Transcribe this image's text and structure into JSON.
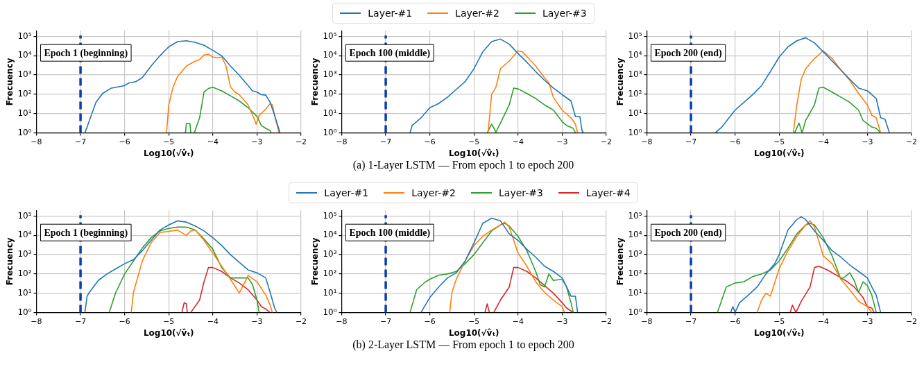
{
  "chart_data": [
    {
      "type": "line",
      "xlabel": "Log10(√v̂ₜ)",
      "ylabel": "Frecuency",
      "legend": "top",
      "grid": true,
      "log": "y",
      "marker": "none",
      "line_style": "solid",
      "xlim": [
        -8,
        -2
      ],
      "ylim": [
        1,
        200000
      ],
      "xticks": [
        {
          "value": -8,
          "label": "−8"
        },
        {
          "value": -7,
          "label": "−7"
        },
        {
          "value": -6,
          "label": "−6"
        },
        {
          "value": -5,
          "label": "−5"
        },
        {
          "value": -4,
          "label": "−4"
        },
        {
          "value": -3,
          "label": "−3"
        },
        {
          "value": -2,
          "label": "−2"
        }
      ],
      "yticks": [
        {
          "value": 1,
          "label": "10⁰"
        },
        {
          "value": 10,
          "label": "10¹"
        },
        {
          "value": 100,
          "label": "10²"
        },
        {
          "value": 1000,
          "label": "10³"
        },
        {
          "value": 10000,
          "label": "10⁴"
        },
        {
          "value": 100000,
          "label": "10⁵"
        }
      ],
      "ref_lines": [
        {
          "axis": "x",
          "value": -7,
          "color": "#0a3fa8",
          "line_style": "dashed"
        }
      ],
      "annotations": [
        "Epoch 1 (beginning)",
        "(a)  1-Layer LSTM — From epoch 1 to epoch 200"
      ],
      "series": [
        {
          "name": "Layer-#1",
          "color": "#1f77b4",
          "x": [
            -6.9,
            -6.85,
            -6.65,
            -6.5,
            -6.3,
            -6,
            -5.9,
            -5.75,
            -5.6,
            -5.4,
            -5.2,
            -5,
            -4.8,
            -4.6,
            -4.4,
            -4.2,
            -4,
            -3.8,
            -3.6,
            -3.4,
            -3.2,
            -3.1,
            -3,
            -2.9,
            -2.8,
            -2.7,
            -2.6,
            -2.5,
            -2.48
          ],
          "values": [
            1,
            2,
            38,
            110,
            210,
            280,
            390,
            450,
            720,
            2900,
            10000,
            29000,
            54000,
            60000,
            50000,
            35000,
            19000,
            10000,
            2900,
            970,
            280,
            150,
            130,
            95,
            90,
            38,
            8,
            1.5,
            1
          ]
        },
        {
          "name": "Layer-#2",
          "color": "#ff7f0e",
          "x": [
            -5.05,
            -5,
            -4.9,
            -4.8,
            -4.6,
            -4.4,
            -4.3,
            -4.2,
            -4.1,
            -4,
            -3.9,
            -3.8,
            -3.7,
            -3.6,
            -3.5,
            -3.4,
            -3.2,
            -3.05,
            -3.02,
            -2.95,
            -2.8,
            -2.7,
            -2.65,
            -2.6,
            -2.5
          ],
          "values": [
            1,
            28,
            240,
            830,
            2900,
            5300,
            6300,
            11000,
            12000,
            8500,
            7700,
            8500,
            2900,
            240,
            130,
            95,
            28,
            4.4,
            2.8,
            8,
            17,
            33,
            28,
            8,
            1
          ]
        },
        {
          "name": "Layer-#3",
          "color": "#2ca02c",
          "x": [
            -4.62,
            -4.6,
            -4.52,
            -4.5,
            -4.46,
            -4.42,
            -4.3,
            -4.2,
            -4.1,
            -4,
            -3.8,
            -3.6,
            -3.4,
            -3.2,
            -3,
            -2.9,
            -2.8,
            -2.7,
            -2.68
          ],
          "values": [
            1,
            3,
            3,
            1,
            null,
            1,
            6,
            130,
            200,
            230,
            150,
            83,
            45,
            20,
            7,
            2.4,
            1.7,
            1.3,
            1
          ]
        }
      ]
    },
    {
      "type": "line",
      "xlabel": "Log10(√v̂ₜ)",
      "ylabel": "Frecuency",
      "grid": true,
      "log": "y",
      "marker": "none",
      "line_style": "solid",
      "xlim": [
        -8,
        -2
      ],
      "ylim": [
        1,
        200000
      ],
      "xticks": [
        {
          "value": -8,
          "label": "−8"
        },
        {
          "value": -7,
          "label": "−7"
        },
        {
          "value": -6,
          "label": "−6"
        },
        {
          "value": -5,
          "label": "−5"
        },
        {
          "value": -4,
          "label": "−4"
        },
        {
          "value": -3,
          "label": "−3"
        },
        {
          "value": -2,
          "label": "−2"
        }
      ],
      "yticks": [
        {
          "value": 1,
          "label": "10⁰"
        },
        {
          "value": 10,
          "label": "10¹"
        },
        {
          "value": 100,
          "label": "10²"
        },
        {
          "value": 1000,
          "label": "10³"
        },
        {
          "value": 10000,
          "label": "10⁴"
        },
        {
          "value": 100000,
          "label": "10⁵"
        }
      ],
      "ref_lines": [
        {
          "axis": "x",
          "value": -7,
          "color": "#0a3fa8",
          "line_style": "dashed"
        }
      ],
      "annotations": [
        "Epoch 100 (middle)"
      ],
      "series": [
        {
          "color": "#1f77b4",
          "x": [
            -6.45,
            -6.4,
            -6.2,
            -6,
            -5.8,
            -5.6,
            -5.4,
            -5.2,
            -5,
            -4.8,
            -4.6,
            -4.4,
            -4.2,
            -4,
            -3.8,
            -3.6,
            -3.4,
            -3.2,
            -3,
            -2.8,
            -2.7,
            -2.6,
            -2.55,
            -2.52
          ],
          "values": [
            1,
            2.4,
            6,
            20,
            33,
            70,
            180,
            450,
            2100,
            16000,
            54000,
            73000,
            40000,
            13000,
            4600,
            1500,
            530,
            210,
            95,
            45,
            7,
            7,
            1.3,
            1
          ]
        },
        {
          "color": "#ff7f0e",
          "x": [
            -4.68,
            -4.6,
            -4.5,
            -4.4,
            -4.2,
            -4,
            -3.9,
            -3.6,
            -3.4,
            -3.3,
            -3.2,
            -3,
            -2.8,
            -2.7,
            -2.65
          ],
          "values": [
            1,
            96,
            240,
            2100,
            5300,
            18000,
            16000,
            2900,
            720,
            390,
            70,
            15,
            6,
            2.8,
            1
          ]
        },
        {
          "color": "#2ca02c",
          "x": [
            -4.7,
            -4.6,
            -4.5,
            -4.4,
            -4.2,
            -4.1,
            -4,
            -3.8,
            -3.6,
            -3.4,
            -3.2,
            -3,
            -2.9,
            -2.75,
            -2.7
          ],
          "values": [
            1,
            2.8,
            1.1,
            3.2,
            28,
            210,
            190,
            110,
            60,
            28,
            15,
            3.8,
            2.4,
            1.7,
            1
          ]
        }
      ]
    },
    {
      "type": "line",
      "xlabel": "Log10(√v̂ₜ)",
      "ylabel": "Frecuency",
      "grid": true,
      "log": "y",
      "marker": "none",
      "line_style": "solid",
      "xlim": [
        -8,
        -2
      ],
      "ylim": [
        1,
        200000
      ],
      "xticks": [
        {
          "value": -8,
          "label": "−8"
        },
        {
          "value": -7,
          "label": "−7"
        },
        {
          "value": -6,
          "label": "−6"
        },
        {
          "value": -5,
          "label": "−5"
        },
        {
          "value": -4,
          "label": "−4"
        },
        {
          "value": -3,
          "label": "−3"
        },
        {
          "value": -2,
          "label": "−2"
        }
      ],
      "yticks": [
        {
          "value": 1,
          "label": "10⁰"
        },
        {
          "value": 10,
          "label": "10¹"
        },
        {
          "value": 100,
          "label": "10²"
        },
        {
          "value": 1000,
          "label": "10³"
        },
        {
          "value": 10000,
          "label": "10⁴"
        },
        {
          "value": 100000,
          "label": "10⁵"
        }
      ],
      "ref_lines": [
        {
          "axis": "x",
          "value": -7,
          "color": "#0a3fa8",
          "line_style": "dashed"
        }
      ],
      "annotations": [
        "Epoch 200 (end)"
      ],
      "series": [
        {
          "color": "#1f77b4",
          "x": [
            -6.45,
            -6.3,
            -6,
            -5.8,
            -5.6,
            -5.4,
            -5.2,
            -5,
            -4.8,
            -4.6,
            -4.4,
            -4.2,
            -4,
            -3.8,
            -3.6,
            -3.4,
            -3.2,
            -3,
            -2.8,
            -2.7,
            -2.6,
            -2.5
          ],
          "values": [
            1,
            2,
            15,
            38,
            96,
            280,
            1500,
            8500,
            29000,
            60000,
            86000,
            46000,
            16000,
            5300,
            1800,
            600,
            210,
            150,
            60,
            6,
            5,
            1
          ]
        },
        {
          "color": "#ff7f0e",
          "x": [
            -4.68,
            -4.6,
            -4.5,
            -4.4,
            -4.2,
            -4,
            -3.8,
            -3.6,
            -3.4,
            -3.2,
            -3,
            -2.9,
            -2.8,
            -2.7
          ],
          "values": [
            1,
            28,
            600,
            2100,
            7200,
            18000,
            7200,
            1800,
            530,
            110,
            28,
            8,
            6,
            1
          ]
        },
        {
          "color": "#2ca02c",
          "x": [
            -4.65,
            -4.55,
            -4.48,
            -4.4,
            -4.2,
            -4.1,
            -4,
            -3.8,
            -3.6,
            -3.4,
            -3.2,
            -3.1,
            -2.9,
            -2.8,
            -2.7
          ],
          "values": [
            1,
            3.2,
            1,
            4.4,
            28,
            210,
            230,
            130,
            70,
            38,
            15,
            4.4,
            2,
            1.7,
            1
          ]
        }
      ]
    },
    {
      "type": "line",
      "xlabel": "Log10(√v̂ₜ)",
      "ylabel": "Frecuency",
      "legend": "top",
      "grid": true,
      "log": "y",
      "marker": "none",
      "line_style": "solid",
      "xlim": [
        -8,
        -2
      ],
      "ylim": [
        1,
        200000
      ],
      "xticks": [
        {
          "value": -8,
          "label": "−8"
        },
        {
          "value": -7,
          "label": "−7"
        },
        {
          "value": -6,
          "label": "−6"
        },
        {
          "value": -5,
          "label": "−5"
        },
        {
          "value": -4,
          "label": "−4"
        },
        {
          "value": -3,
          "label": "−3"
        },
        {
          "value": -2,
          "label": "−2"
        }
      ],
      "yticks": [
        {
          "value": 1,
          "label": "10⁰"
        },
        {
          "value": 10,
          "label": "10¹"
        },
        {
          "value": 100,
          "label": "10²"
        },
        {
          "value": 1000,
          "label": "10³"
        },
        {
          "value": 10000,
          "label": "10⁴"
        },
        {
          "value": 100000,
          "label": "10⁵"
        }
      ],
      "ref_lines": [
        {
          "axis": "x",
          "value": -7,
          "color": "#0a3fa8",
          "line_style": "dashed"
        }
      ],
      "annotations": [
        "Epoch 1 (beginning)",
        "(b)  2-Layer LSTM — From epoch 1 to epoch 200"
      ],
      "series": [
        {
          "name": "Layer-#1",
          "color": "#1f77b4",
          "x": [
            -6.9,
            -6.85,
            -6.8,
            -6.6,
            -6.4,
            -6.2,
            -6,
            -5.8,
            -5.6,
            -5.4,
            -5.2,
            -5,
            -4.8,
            -4.6,
            -4.4,
            -4.2,
            -4,
            -3.8,
            -3.6,
            -3.4,
            -3.2,
            -3,
            -2.8,
            -2.7,
            -2.6,
            -2.55
          ],
          "values": [
            1,
            7,
            11,
            45,
            100,
            185,
            340,
            550,
            1600,
            5500,
            19000,
            35000,
            57000,
            49000,
            31000,
            17000,
            7600,
            3000,
            1000,
            400,
            160,
            115,
            62,
            11,
            1.7,
            1
          ]
        },
        {
          "name": "Layer-#2",
          "color": "#ff7f0e",
          "x": [
            -5.85,
            -5.8,
            -5.6,
            -5.4,
            -5.2,
            -4.8,
            -4.6,
            -4.5,
            -4.4,
            -4.2,
            -4,
            -3.8,
            -3.6,
            -3.4,
            -3.3,
            -3.2,
            -3,
            -2.8,
            -2.7,
            -2.65
          ],
          "values": [
            1,
            11,
            470,
            4100,
            14000,
            19000,
            10000,
            17000,
            19000,
            5500,
            1200,
            250,
            53,
            10,
            28,
            85,
            39,
            8,
            2.4,
            1
          ]
        },
        {
          "name": "Layer-#3",
          "color": "#2ca02c",
          "x": [
            -6.35,
            -6.2,
            -6,
            -5.8,
            -5.6,
            -5.4,
            -5.2,
            -5,
            -4.8,
            -4.6,
            -4.4,
            -4.2,
            -4,
            -3.8,
            -3.6,
            -3.4,
            -3.2,
            -3.1,
            -3,
            -2.95
          ],
          "values": [
            1,
            11,
            100,
            470,
            2200,
            7600,
            17000,
            23000,
            27000,
            27000,
            19000,
            6500,
            1900,
            215,
            62,
            62,
            62,
            28,
            4.4,
            1
          ]
        },
        {
          "name": "Layer-#4",
          "color": "#d62728",
          "x": [
            -4.7,
            -4.65,
            -4.6,
            -4.58,
            -4.54,
            -4.5,
            -4.3,
            -4.2,
            -4.1,
            -4,
            -3.8,
            -3.6,
            -3.4,
            -3.2,
            -3,
            -2.9,
            -2.8,
            -2.7
          ],
          "values": [
            1,
            3.2,
            2.8,
            1,
            null,
            1,
            4.4,
            39,
            215,
            215,
            135,
            62,
            34,
            15,
            4.4,
            2,
            1.5,
            1
          ]
        }
      ]
    },
    {
      "type": "line",
      "xlabel": "Log10(√v̂ₜ)",
      "ylabel": "Frecuency",
      "grid": true,
      "log": "y",
      "marker": "none",
      "line_style": "solid",
      "xlim": [
        -8,
        -2
      ],
      "ylim": [
        1,
        200000
      ],
      "xticks": [
        {
          "value": -8,
          "label": "−8"
        },
        {
          "value": -7,
          "label": "−7"
        },
        {
          "value": -6,
          "label": "−6"
        },
        {
          "value": -5,
          "label": "−5"
        },
        {
          "value": -4,
          "label": "−4"
        },
        {
          "value": -3,
          "label": "−3"
        },
        {
          "value": -2,
          "label": "−2"
        }
      ],
      "yticks": [
        {
          "value": 1,
          "label": "10⁰"
        },
        {
          "value": 10,
          "label": "10¹"
        },
        {
          "value": 100,
          "label": "10²"
        },
        {
          "value": 1000,
          "label": "10³"
        },
        {
          "value": 10000,
          "label": "10⁴"
        },
        {
          "value": 100000,
          "label": "10⁵"
        }
      ],
      "ref_lines": [
        {
          "axis": "x",
          "value": -7,
          "color": "#0a3fa8",
          "line_style": "dashed"
        }
      ],
      "annotations": [
        "Epoch 100 (middle)"
      ],
      "series": [
        {
          "color": "#1f77b4",
          "x": [
            -6.2,
            -6,
            -5.8,
            -5.6,
            -5.4,
            -5.2,
            -5,
            -4.8,
            -4.6,
            -4.4,
            -4.2,
            -4,
            -3.8,
            -3.6,
            -3.4,
            -3.2,
            -3,
            -2.9,
            -2.8,
            -2.7,
            -2.65
          ],
          "values": [
            1,
            6,
            21,
            62,
            115,
            470,
            4100,
            42000,
            78000,
            57000,
            12000,
            5500,
            1900,
            740,
            250,
            135,
            62,
            21,
            7,
            7,
            1
          ]
        },
        {
          "color": "#ff7f0e",
          "x": [
            -5.55,
            -5.5,
            -5.4,
            -5.2,
            -5,
            -4.8,
            -4.6,
            -4.4,
            -4.3,
            -4.2,
            -4,
            -3.8,
            -3.6,
            -3.4,
            -3.2,
            -3,
            -2.95
          ],
          "values": [
            1,
            11,
            53,
            470,
            3000,
            8900,
            19000,
            35000,
            49000,
            27000,
            1200,
            250,
            39,
            11,
            4.4,
            2,
            1
          ]
        },
        {
          "color": "#2ca02c",
          "x": [
            -6.45,
            -6.3,
            -6.1,
            -6,
            -5.8,
            -5.6,
            -5.4,
            -5.2,
            -5,
            -4.8,
            -4.6,
            -4.4,
            -4.3,
            -4.2,
            -4,
            -3.8,
            -3.6,
            -3.5,
            -3.4,
            -3.3,
            -3.2,
            -3,
            -2.9,
            -2.8,
            -2.75
          ],
          "values": [
            1,
            15,
            39,
            53,
            85,
            100,
            135,
            340,
            1000,
            4100,
            17000,
            35000,
            42000,
            31000,
            8900,
            1600,
            135,
            28,
            21,
            100,
            46,
            53,
            21,
            3.2,
            1
          ]
        },
        {
          "color": "#d62728",
          "x": [
            -4.75,
            -4.7,
            -4.65,
            -4.6,
            -4.55,
            -4.4,
            -4.2,
            -4.1,
            -4,
            -3.8,
            -3.6,
            -3.4,
            -3.2,
            -3,
            -2.9,
            -2.75
          ],
          "values": [
            1,
            2.8,
            1,
            null,
            1,
            4.4,
            21,
            215,
            215,
            135,
            62,
            25,
            10,
            3.2,
            1.7,
            1
          ]
        }
      ]
    },
    {
      "type": "line",
      "xlabel": "Log10(√v̂ₜ)",
      "ylabel": "Frecuency",
      "grid": true,
      "log": "y",
      "marker": "none",
      "line_style": "solid",
      "xlim": [
        -8,
        -2
      ],
      "ylim": [
        1,
        200000
      ],
      "xticks": [
        {
          "value": -8,
          "label": "−8"
        },
        {
          "value": -7,
          "label": "−7"
        },
        {
          "value": -6,
          "label": "−6"
        },
        {
          "value": -5,
          "label": "−5"
        },
        {
          "value": -4,
          "label": "−4"
        },
        {
          "value": -3,
          "label": "−3"
        },
        {
          "value": -2,
          "label": "−2"
        }
      ],
      "yticks": [
        {
          "value": 1,
          "label": "10⁰"
        },
        {
          "value": 10,
          "label": "10¹"
        },
        {
          "value": 100,
          "label": "10²"
        },
        {
          "value": 1000,
          "label": "10³"
        },
        {
          "value": 10000,
          "label": "10⁴"
        },
        {
          "value": 100000,
          "label": "10⁵"
        }
      ],
      "ref_lines": [
        {
          "axis": "x",
          "value": -7,
          "color": "#0a3fa8",
          "line_style": "dashed"
        }
      ],
      "annotations": [
        "Epoch 200 (end)"
      ],
      "series": [
        {
          "color": "#1f77b4",
          "x": [
            -6.1,
            -6.05,
            -6,
            -5.9,
            -5.7,
            -5.5,
            -5.3,
            -5.1,
            -5,
            -4.8,
            -4.6,
            -4.5,
            -4.4,
            -4.2,
            -4,
            -3.8,
            -3.6,
            -3.4,
            -3.2,
            -3,
            -2.9,
            -2.8,
            -2.7
          ],
          "values": [
            1,
            2,
            1,
            3.2,
            8,
            21,
            100,
            340,
            1000,
            19000,
            67000,
            92000,
            67000,
            17000,
            5500,
            1600,
            740,
            290,
            135,
            62,
            21,
            8,
            1
          ]
        },
        {
          "color": "#ff7f0e",
          "x": [
            -5.5,
            -5.4,
            -5.3,
            -5.2,
            -5,
            -4.8,
            -4.6,
            -4.4,
            -4.3,
            -4.2,
            -4,
            -3.8,
            -3.6,
            -3.4,
            -3.2,
            -3,
            -2.9
          ],
          "values": [
            1,
            4.4,
            10,
            7,
            185,
            1600,
            8900,
            35000,
            57000,
            27000,
            860,
            340,
            53,
            15,
            3.8,
            2,
            1
          ]
        },
        {
          "color": "#2ca02c",
          "x": [
            -6.4,
            -6.2,
            -6,
            -5.8,
            -5.6,
            -5.4,
            -5.2,
            -5,
            -4.8,
            -4.6,
            -4.4,
            -4.3,
            -4.2,
            -4,
            -3.8,
            -3.6,
            -3.5,
            -3.4,
            -3.3,
            -3.2,
            -3.1,
            -3,
            -2.9,
            -2.8
          ],
          "values": [
            1,
            21,
            34,
            39,
            73,
            100,
            160,
            470,
            2200,
            12000,
            35000,
            42000,
            35000,
            7600,
            860,
            53,
            73,
            115,
            46,
            11,
            39,
            25,
            8,
            1
          ]
        },
        {
          "color": "#d62728",
          "x": [
            -4.75,
            -4.7,
            -4.62,
            -4.5,
            -4.3,
            -4.2,
            -4.1,
            -3.9,
            -3.7,
            -3.5,
            -3.3,
            -3.1,
            -3,
            -2.9,
            -2.85
          ],
          "values": [
            1,
            2.4,
            1,
            3.8,
            21,
            215,
            250,
            160,
            85,
            46,
            21,
            6,
            2,
            1.7,
            1
          ]
        }
      ]
    }
  ]
}
